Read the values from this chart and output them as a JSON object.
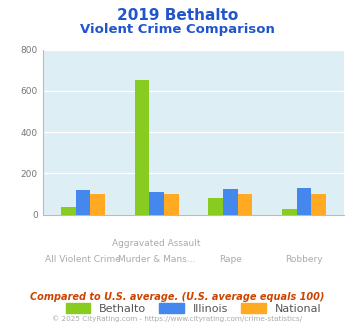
{
  "title_line1": "2019 Bethalto",
  "title_line2": "Violent Crime Comparison",
  "title_color": "#2255cc",
  "cat_labels_top": [
    "",
    "Aggravated Assault",
    "",
    ""
  ],
  "cat_labels_bottom": [
    "All Violent Crime",
    "Murder & Mans...",
    "Rape",
    "Robbery"
  ],
  "bethalto": [
    35,
    650,
    80,
    28
  ],
  "illinois": [
    118,
    110,
    122,
    128
  ],
  "national": [
    100,
    100,
    100,
    100
  ],
  "bethalto_color": "#88cc22",
  "illinois_color": "#4488ee",
  "national_color": "#ffaa22",
  "ylim": [
    0,
    800
  ],
  "yticks": [
    0,
    200,
    400,
    600,
    800
  ],
  "plot_bg": "#ddeef5",
  "grid_color": "#ffffff",
  "footer_text": "Compared to U.S. average. (U.S. average equals 100)",
  "footer_color": "#cc4400",
  "credit_text": "© 2025 CityRating.com - https://www.cityrating.com/crime-statistics/",
  "credit_color": "#aaaaaa"
}
